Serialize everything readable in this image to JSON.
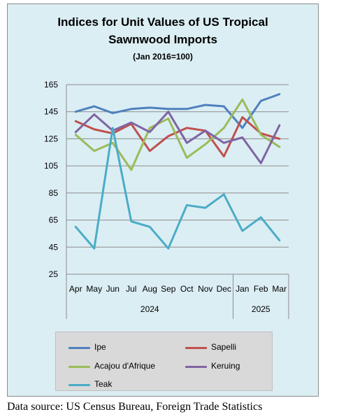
{
  "chart_data": {
    "type": "line",
    "title": "Indices for Unit Values of US Tropical Sawnwood Imports",
    "title_lines": [
      "Indices for Unit Values of US Tropical",
      "Sawnwood Imports"
    ],
    "subtitle": "(Jan 2016=100)",
    "categories": [
      "Apr",
      "May",
      "Jun",
      "Jul",
      "Aug",
      "Sep",
      "Oct",
      "Nov",
      "Dec",
      "Jan",
      "Feb",
      "Mar"
    ],
    "year_groups": [
      {
        "label": "2024",
        "months": [
          "Apr",
          "May",
          "Jun",
          "Jul",
          "Aug",
          "Sep",
          "Oct",
          "Nov",
          "Dec"
        ]
      },
      {
        "label": "2025",
        "months": [
          "Jan",
          "Feb",
          "Mar"
        ]
      }
    ],
    "ylim": [
      25,
      165
    ],
    "yticks": [
      "25",
      "45",
      "65",
      "85",
      "105",
      "125",
      "145",
      "165"
    ],
    "grid": true,
    "legend_position": "bottom",
    "series": [
      {
        "name": "Ipe",
        "color": "#4f81bd",
        "values": [
          145,
          149,
          144,
          147,
          148,
          147,
          147,
          150,
          149,
          133,
          153,
          158
        ]
      },
      {
        "name": "Sapelli",
        "color": "#c0504d",
        "values": [
          138,
          132,
          129,
          136,
          116,
          127,
          133,
          131,
          112,
          141,
          129,
          125
        ]
      },
      {
        "name": "Acajou d'Afrique",
        "color": "#9bbb59",
        "values": [
          128,
          116,
          122,
          102,
          133,
          140,
          111,
          121,
          133,
          154,
          128,
          119
        ]
      },
      {
        "name": "Keruing",
        "color": "#8064a2",
        "values": [
          130,
          143,
          131,
          137,
          130,
          145,
          122,
          131,
          122,
          126,
          107,
          135
        ]
      },
      {
        "name": "Teak",
        "color": "#4bacc6",
        "values": [
          60,
          44,
          133,
          64,
          60,
          44,
          76,
          74,
          84,
          57,
          67,
          50
        ]
      }
    ]
  },
  "source_note": "Data source: US Census Bureau, Foreign Trade Statistics"
}
